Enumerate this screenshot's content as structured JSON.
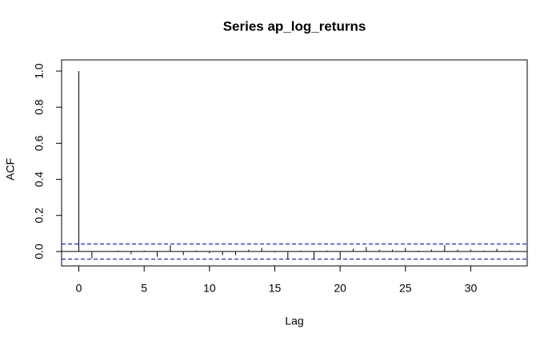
{
  "chart_data": {
    "type": "acf",
    "title": "Series  ap_log_returns",
    "x_label": "Lag",
    "y_label": "ACF",
    "x": [
      0,
      1,
      2,
      3,
      4,
      5,
      6,
      7,
      8,
      9,
      10,
      11,
      12,
      13,
      14,
      15,
      16,
      17,
      18,
      19,
      20,
      21,
      22,
      23,
      24,
      25,
      26,
      27,
      28,
      29,
      30,
      31,
      32,
      33
    ],
    "values": [
      1.0,
      -0.037,
      0.002,
      0.005,
      -0.015,
      0.005,
      -0.03,
      0.035,
      -0.02,
      0.005,
      -0.01,
      -0.02,
      -0.02,
      0.01,
      0.02,
      -0.005,
      -0.04,
      0.005,
      -0.04,
      0.005,
      -0.045,
      0.015,
      0.025,
      0.01,
      0.01,
      0.02,
      0.005,
      0.01,
      0.035,
      0.01,
      0.01,
      0.005,
      0.015,
      0.005
    ],
    "color": "#000000",
    "conf_limits": [
      0.042,
      -0.042
    ],
    "conf_color": "#0000cc",
    "xlim": [
      -1.32,
      34.32
    ],
    "xticks": [
      0,
      5,
      10,
      15,
      20,
      25,
      30
    ],
    "ylim": [
      -0.08,
      1.062
    ],
    "yticks": [
      {
        "value": 0,
        "label": "0.0"
      },
      0.2,
      0.4,
      0.6,
      0.8,
      {
        "value": 1,
        "label": "1.0"
      }
    ]
  }
}
